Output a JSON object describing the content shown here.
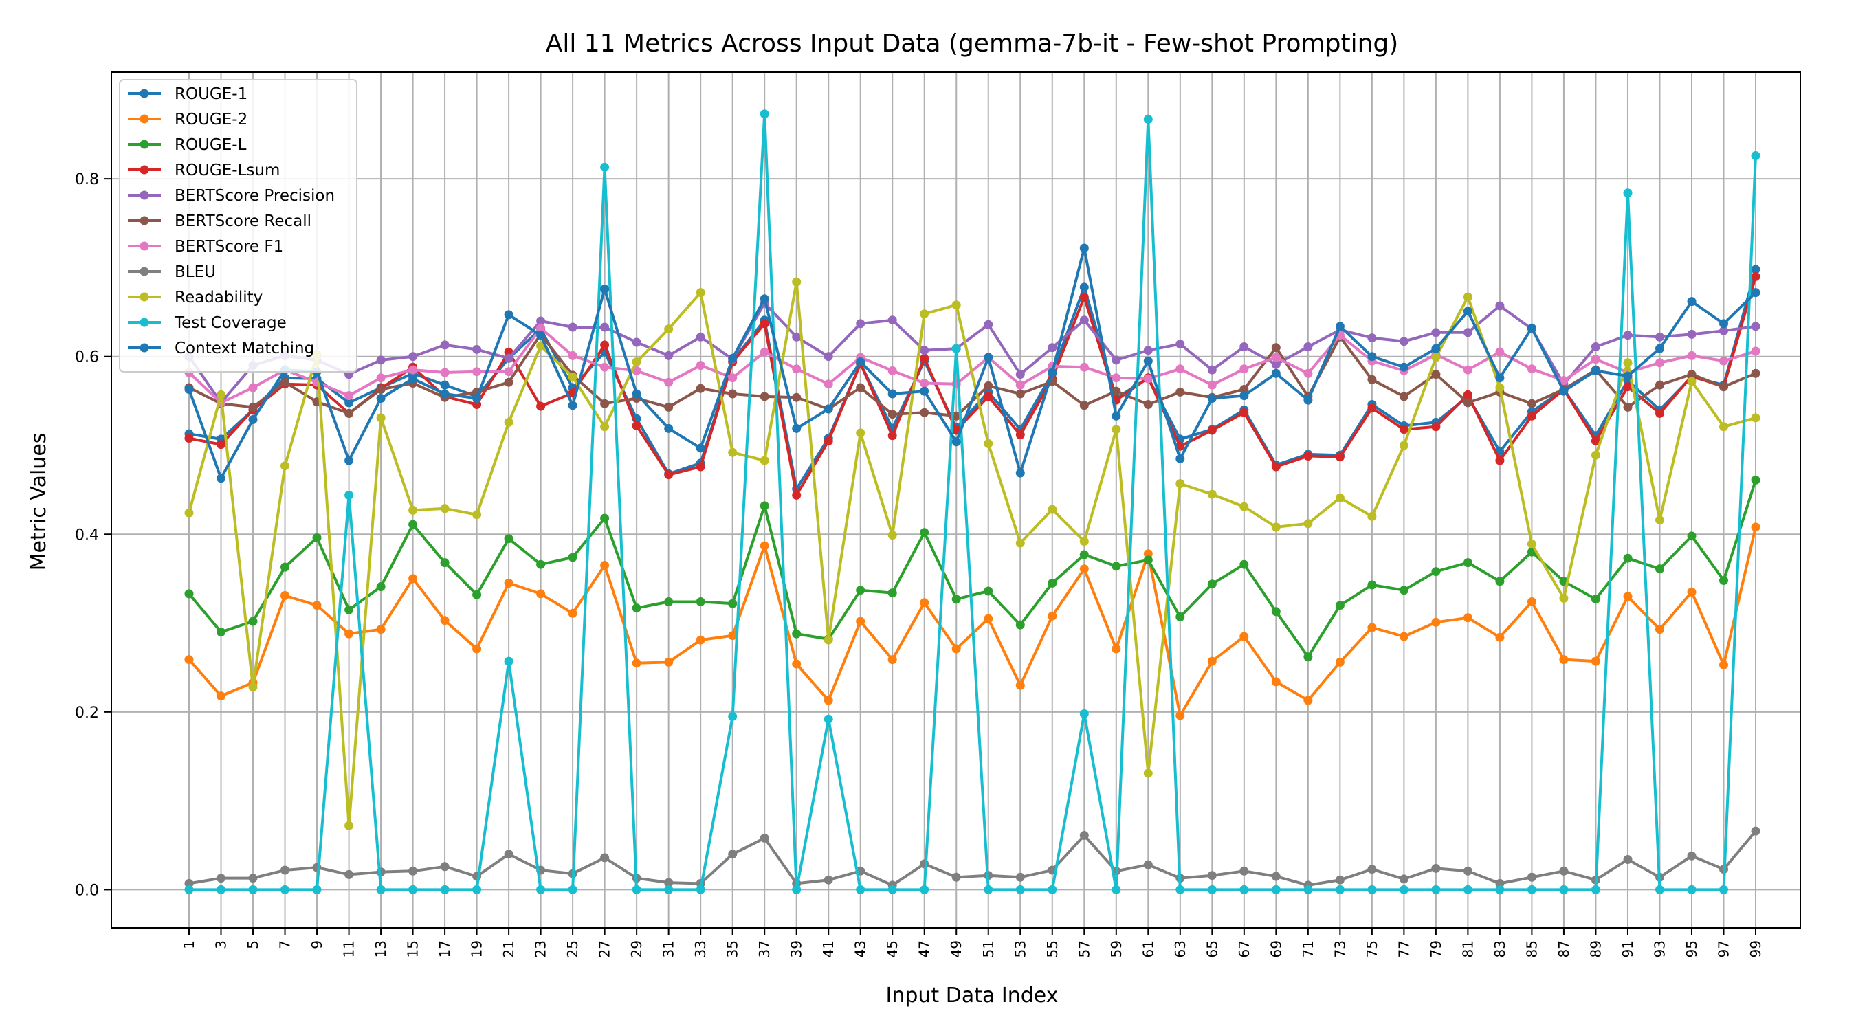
{
  "chart_data": {
    "type": "line",
    "title": "All 11 Metrics Across Input Data (gemma-7b-it - Few-shot Prompting)",
    "xlabel": "Input Data Index",
    "ylabel": "Metric Values",
    "x": [
      1,
      3,
      5,
      7,
      9,
      11,
      13,
      15,
      17,
      19,
      21,
      23,
      25,
      27,
      29,
      31,
      33,
      35,
      37,
      39,
      41,
      43,
      45,
      47,
      49,
      51,
      53,
      55,
      57,
      59,
      61,
      63,
      65,
      67,
      69,
      71,
      73,
      75,
      77,
      79,
      81,
      83,
      85,
      87,
      89,
      91,
      93,
      95,
      97,
      99
    ],
    "x_tick_labels": [
      "1",
      "3",
      "5",
      "7",
      "9",
      "11",
      "13",
      "15",
      "17",
      "19",
      "21",
      "23",
      "25",
      "27",
      "29",
      "31",
      "33",
      "35",
      "37",
      "39",
      "41",
      "43",
      "45",
      "47",
      "49",
      "51",
      "53",
      "55",
      "57",
      "59",
      "61",
      "63",
      "65",
      "67",
      "69",
      "71",
      "73",
      "75",
      "77",
      "79",
      "81",
      "83",
      "85",
      "87",
      "89",
      "91",
      "93",
      "95",
      "97",
      "99"
    ],
    "ylim": [
      -0.043,
      0.92
    ],
    "y_ticks": [
      0.0,
      0.2,
      0.4,
      0.6,
      0.8
    ],
    "y_tick_labels": [
      "0.0",
      "0.2",
      "0.4",
      "0.6",
      "0.8"
    ],
    "grid": true,
    "legend_position": "top-left",
    "series": [
      {
        "name": "ROUGE-1",
        "color": "#1f77b4",
        "values": [
          0.513,
          0.507,
          0.54,
          0.576,
          0.575,
          0.548,
          0.565,
          0.581,
          0.568,
          0.555,
          0.598,
          0.631,
          0.565,
          0.605,
          0.53,
          0.468,
          0.48,
          0.595,
          0.641,
          0.451,
          0.508,
          0.592,
          0.519,
          0.595,
          0.52,
          0.56,
          0.518,
          0.581,
          0.678,
          0.553,
          0.576,
          0.507,
          0.518,
          0.54,
          0.478,
          0.49,
          0.489,
          0.546,
          0.522,
          0.526,
          0.555,
          0.493,
          0.538,
          0.563,
          0.511,
          0.573,
          0.54,
          0.577,
          0.568,
          0.698
        ]
      },
      {
        "name": "ROUGE-2",
        "color": "#ff7f0e",
        "values": [
          0.259,
          0.218,
          0.233,
          0.331,
          0.32,
          0.288,
          0.293,
          0.35,
          0.303,
          0.271,
          0.345,
          0.333,
          0.311,
          0.365,
          0.255,
          0.256,
          0.281,
          0.286,
          0.387,
          0.254,
          0.213,
          0.302,
          0.259,
          0.323,
          0.271,
          0.305,
          0.23,
          0.308,
          0.361,
          0.271,
          0.378,
          0.196,
          0.257,
          0.285,
          0.234,
          0.213,
          0.256,
          0.295,
          0.285,
          0.301,
          0.306,
          0.284,
          0.324,
          0.259,
          0.257,
          0.33,
          0.293,
          0.335,
          0.253,
          0.408
        ]
      },
      {
        "name": "ROUGE-L",
        "color": "#2ca02c",
        "values": [
          0.333,
          0.29,
          0.302,
          0.363,
          0.396,
          0.315,
          0.341,
          0.411,
          0.368,
          0.332,
          0.395,
          0.366,
          0.374,
          0.418,
          0.317,
          0.324,
          0.324,
          0.322,
          0.432,
          0.288,
          0.282,
          0.337,
          0.334,
          0.402,
          0.327,
          0.336,
          0.298,
          0.345,
          0.377,
          0.364,
          0.371,
          0.307,
          0.344,
          0.366,
          0.313,
          0.262,
          0.32,
          0.343,
          0.337,
          0.358,
          0.368,
          0.347,
          0.38,
          0.347,
          0.327,
          0.373,
          0.361,
          0.398,
          0.348,
          0.461
        ]
      },
      {
        "name": "ROUGE-Lsum",
        "color": "#d62728",
        "values": [
          0.508,
          0.501,
          0.54,
          0.569,
          0.568,
          0.536,
          0.564,
          0.588,
          0.555,
          0.546,
          0.605,
          0.544,
          0.559,
          0.613,
          0.522,
          0.467,
          0.476,
          0.594,
          0.637,
          0.444,
          0.505,
          0.592,
          0.511,
          0.598,
          0.517,
          0.555,
          0.512,
          0.575,
          0.667,
          0.551,
          0.576,
          0.499,
          0.517,
          0.537,
          0.476,
          0.488,
          0.487,
          0.542,
          0.518,
          0.521,
          0.557,
          0.483,
          0.533,
          0.563,
          0.505,
          0.566,
          0.536,
          0.578,
          0.566,
          0.69
        ]
      },
      {
        "name": "BERTScore Precision",
        "color": "#9467bd",
        "values": [
          0.6,
          0.548,
          0.59,
          0.601,
          0.596,
          0.58,
          0.596,
          0.6,
          0.613,
          0.608,
          0.598,
          0.64,
          0.633,
          0.633,
          0.616,
          0.601,
          0.622,
          0.597,
          0.66,
          0.622,
          0.6,
          0.637,
          0.641,
          0.607,
          0.609,
          0.636,
          0.58,
          0.61,
          0.641,
          0.596,
          0.607,
          0.614,
          0.585,
          0.611,
          0.591,
          0.611,
          0.63,
          0.621,
          0.617,
          0.627,
          0.627,
          0.657,
          0.631,
          0.569,
          0.611,
          0.624,
          0.622,
          0.625,
          0.629,
          0.634
        ]
      },
      {
        "name": "BERTScore Recall",
        "color": "#8c564b",
        "values": [
          0.565,
          0.547,
          0.543,
          0.571,
          0.549,
          0.536,
          0.563,
          0.57,
          0.554,
          0.56,
          0.571,
          0.625,
          0.579,
          0.547,
          0.553,
          0.543,
          0.564,
          0.558,
          0.555,
          0.554,
          0.541,
          0.565,
          0.535,
          0.537,
          0.533,
          0.567,
          0.558,
          0.572,
          0.545,
          0.561,
          0.546,
          0.56,
          0.554,
          0.563,
          0.61,
          0.555,
          0.622,
          0.574,
          0.555,
          0.58,
          0.548,
          0.56,
          0.547,
          0.563,
          0.585,
          0.543,
          0.568,
          0.58,
          0.566,
          0.581
        ]
      },
      {
        "name": "BERTScore F1",
        "color": "#e377c2",
        "values": [
          0.582,
          0.548,
          0.565,
          0.585,
          0.571,
          0.556,
          0.576,
          0.585,
          0.582,
          0.583,
          0.583,
          0.632,
          0.601,
          0.588,
          0.584,
          0.571,
          0.59,
          0.576,
          0.605,
          0.586,
          0.569,
          0.599,
          0.584,
          0.57,
          0.569,
          0.599,
          0.568,
          0.589,
          0.588,
          0.576,
          0.575,
          0.586,
          0.568,
          0.586,
          0.599,
          0.581,
          0.624,
          0.595,
          0.584,
          0.602,
          0.585,
          0.605,
          0.586,
          0.573,
          0.597,
          0.582,
          0.593,
          0.601,
          0.595,
          0.606
        ]
      },
      {
        "name": "BLEU",
        "color": "#7f7f7f",
        "values": [
          0.007,
          0.013,
          0.013,
          0.022,
          0.025,
          0.017,
          0.02,
          0.021,
          0.026,
          0.015,
          0.04,
          0.022,
          0.018,
          0.036,
          0.013,
          0.008,
          0.007,
          0.04,
          0.058,
          0.007,
          0.011,
          0.021,
          0.005,
          0.029,
          0.014,
          0.016,
          0.014,
          0.022,
          0.061,
          0.021,
          0.028,
          0.013,
          0.016,
          0.021,
          0.015,
          0.005,
          0.011,
          0.023,
          0.012,
          0.024,
          0.021,
          0.007,
          0.014,
          0.021,
          0.011,
          0.034,
          0.014,
          0.038,
          0.023,
          0.066
        ]
      },
      {
        "name": "Readability",
        "color": "#bcbd22",
        "values": [
          0.424,
          0.557,
          0.228,
          0.477,
          0.602,
          0.072,
          0.531,
          0.427,
          0.429,
          0.422,
          0.526,
          0.612,
          0.577,
          0.521,
          0.594,
          0.631,
          0.672,
          0.492,
          0.483,
          0.684,
          0.281,
          0.514,
          0.399,
          0.648,
          0.658,
          0.502,
          0.39,
          0.428,
          0.392,
          0.518,
          0.131,
          0.457,
          0.445,
          0.431,
          0.408,
          0.412,
          0.441,
          0.42,
          0.5,
          0.599,
          0.667,
          0.565,
          0.389,
          0.328,
          0.489,
          0.593,
          0.416,
          0.572,
          0.521,
          0.531
        ]
      },
      {
        "name": "Test Coverage",
        "color": "#17becf",
        "values": [
          0.0,
          0.0,
          0.0,
          0.0,
          0.0,
          0.444,
          0.0,
          0.0,
          0.0,
          0.0,
          0.257,
          0.0,
          0.0,
          0.813,
          0.0,
          0.0,
          0.0,
          0.195,
          0.873,
          0.0,
          0.192,
          0.0,
          0.0,
          0.0,
          0.609,
          0.0,
          0.0,
          0.0,
          0.198,
          0.0,
          0.867,
          0.0,
          0.0,
          0.0,
          0.0,
          0.0,
          0.0,
          0.0,
          0.0,
          0.0,
          0.0,
          0.0,
          0.0,
          0.0,
          0.0,
          0.784,
          0.0,
          0.0,
          0.0,
          0.826
        ]
      },
      {
        "name": "Context Matching",
        "color": "#1f77b4",
        "values": [
          0.563,
          0.463,
          0.529,
          0.585,
          0.583,
          0.483,
          0.553,
          0.575,
          0.558,
          0.553,
          0.647,
          0.624,
          0.545,
          0.676,
          0.558,
          0.519,
          0.497,
          0.598,
          0.665,
          0.519,
          0.541,
          0.594,
          0.558,
          0.561,
          0.504,
          0.599,
          0.469,
          0.582,
          0.722,
          0.533,
          0.595,
          0.485,
          0.553,
          0.556,
          0.581,
          0.551,
          0.634,
          0.6,
          0.588,
          0.609,
          0.651,
          0.576,
          0.632,
          0.561,
          0.584,
          0.578,
          0.609,
          0.662,
          0.637,
          0.672
        ]
      }
    ]
  }
}
